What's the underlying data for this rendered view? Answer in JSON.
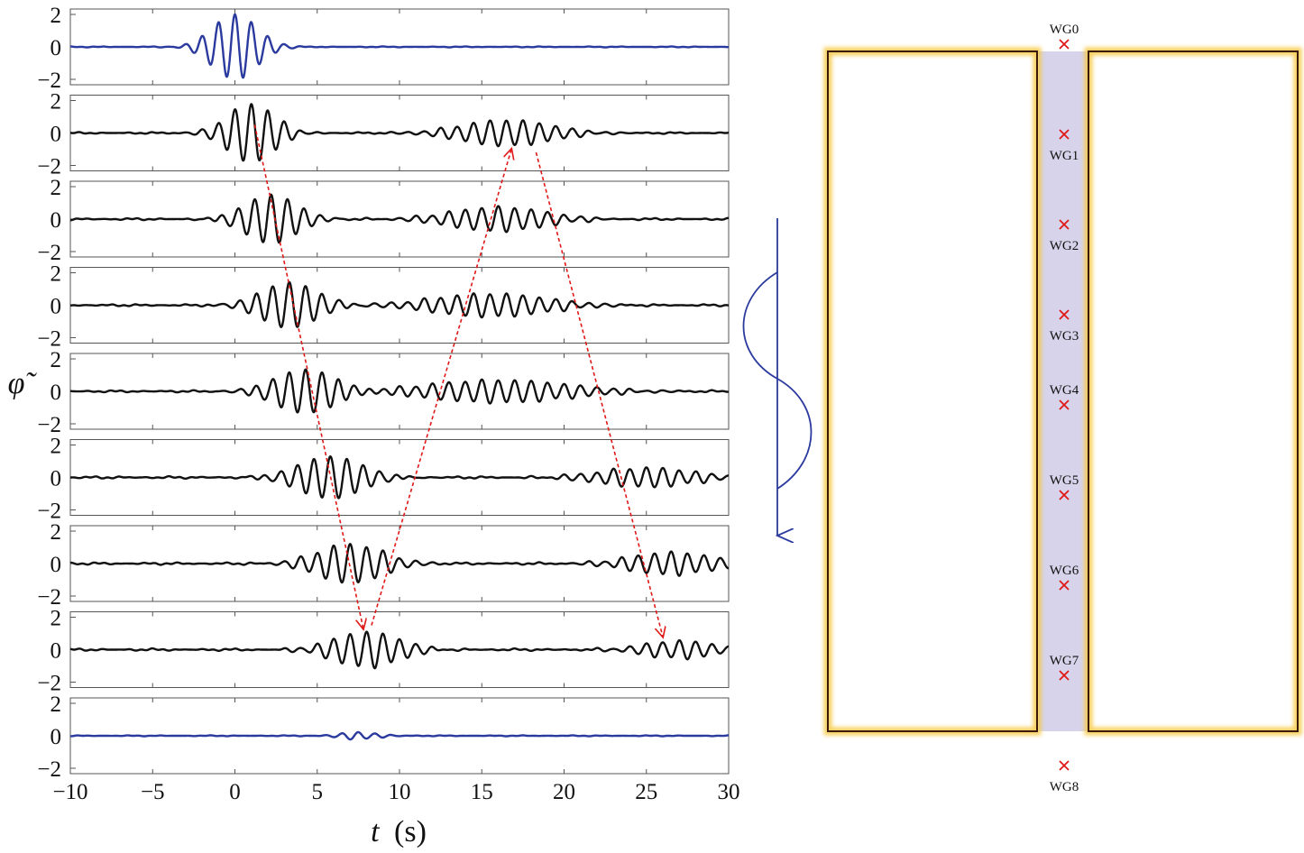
{
  "chart_data": {
    "type": "line",
    "xlabel_italic": "t",
    "xlabel_unit": "(s)",
    "ylabel": "φ̃",
    "xlim": [
      -10,
      30
    ],
    "ylim": [
      -2,
      2
    ],
    "xticks": [
      "−10",
      "−5",
      "0",
      "5",
      "10",
      "15",
      "20",
      "25",
      "30"
    ],
    "xtick_values": [
      -10,
      -5,
      0,
      5,
      10,
      15,
      20,
      25,
      30
    ],
    "yticks": [
      "2",
      "0",
      "−2"
    ],
    "ytick_values": [
      2,
      0,
      -2
    ],
    "colors": {
      "input": "#2b3a9e",
      "gauge": "#111111",
      "arrow": "#e01818",
      "channel": "#d6d3ea",
      "wall": "#3a1a0a",
      "glow": "#f5c842"
    },
    "series": [
      {
        "gauge": "WG0",
        "color": "input",
        "packets": [
          {
            "t0": 0,
            "amp": 2.0,
            "width": 1.9
          }
        ],
        "noise": 0.03
      },
      {
        "gauge": "WG1",
        "color": "gauge",
        "packets": [
          {
            "t0": 1.0,
            "amp": 1.8,
            "width": 2.0
          },
          {
            "t0": 16.5,
            "amp": 0.8,
            "width": 3.8
          }
        ],
        "noise": 0.06
      },
      {
        "gauge": "WG2",
        "color": "gauge",
        "packets": [
          {
            "t0": 2.2,
            "amp": 1.5,
            "width": 2.2
          },
          {
            "t0": 16.0,
            "amp": 0.75,
            "width": 4.0
          }
        ],
        "noise": 0.07
      },
      {
        "gauge": "WG3",
        "color": "gauge",
        "packets": [
          {
            "t0": 3.3,
            "amp": 1.4,
            "width": 2.4
          },
          {
            "t0": 15.5,
            "amp": 0.72,
            "width": 4.8
          }
        ],
        "noise": 0.07
      },
      {
        "gauge": "WG4",
        "color": "gauge",
        "packets": [
          {
            "t0": 4.3,
            "amp": 1.35,
            "width": 2.6
          },
          {
            "t0": 16.0,
            "amp": 0.7,
            "width": 6.0
          }
        ],
        "noise": 0.07
      },
      {
        "gauge": "WG5",
        "color": "gauge",
        "packets": [
          {
            "t0": 5.8,
            "amp": 1.3,
            "width": 2.7
          },
          {
            "t0": 25.0,
            "amp": 0.6,
            "width": 4.0
          }
        ],
        "noise": 0.08
      },
      {
        "gauge": "WG6",
        "color": "gauge",
        "packets": [
          {
            "t0": 7.0,
            "amp": 1.2,
            "width": 2.8
          },
          {
            "t0": 26.5,
            "amp": 0.7,
            "width": 3.5
          }
        ],
        "noise": 0.08
      },
      {
        "gauge": "WG7",
        "color": "gauge",
        "packets": [
          {
            "t0": 8.0,
            "amp": 1.1,
            "width": 2.8
          },
          {
            "t0": 27.0,
            "amp": 0.55,
            "width": 3.0
          }
        ],
        "noise": 0.08
      },
      {
        "gauge": "WG8",
        "color": "input",
        "packets": [
          {
            "t0": 7.5,
            "amp": 0.22,
            "width": 1.6
          }
        ],
        "noise": 0.03
      }
    ],
    "carrier_period_s": 1.0,
    "arrows": [
      {
        "from": {
          "panel": 1,
          "t": 1.2,
          "y": 0.5
        },
        "to": {
          "panel": 7,
          "t": 7.8,
          "y": 1.3
        }
      },
      {
        "from": {
          "panel": 7,
          "t": 8.3,
          "y": 1.5
        },
        "to": {
          "panel": 1,
          "t": 16.8,
          "y": -1.0
        }
      },
      {
        "from": {
          "panel": 1,
          "t": 18.3,
          "y": -1.2
        },
        "to": {
          "panel": 7,
          "t": 26.0,
          "y": 0.8
        }
      }
    ]
  },
  "schematic": {
    "gauges": [
      {
        "label": "WG0",
        "label_pos": "above"
      },
      {
        "label": "WG1",
        "label_pos": "below"
      },
      {
        "label": "WG2",
        "label_pos": "below"
      },
      {
        "label": "WG3",
        "label_pos": "below"
      },
      {
        "label": "WG4",
        "label_pos": "above"
      },
      {
        "label": "WG5",
        "label_pos": "above"
      },
      {
        "label": "WG6",
        "label_pos": "above"
      },
      {
        "label": "WG7",
        "label_pos": "above"
      },
      {
        "label": "WG8",
        "label_pos": "below"
      }
    ]
  }
}
